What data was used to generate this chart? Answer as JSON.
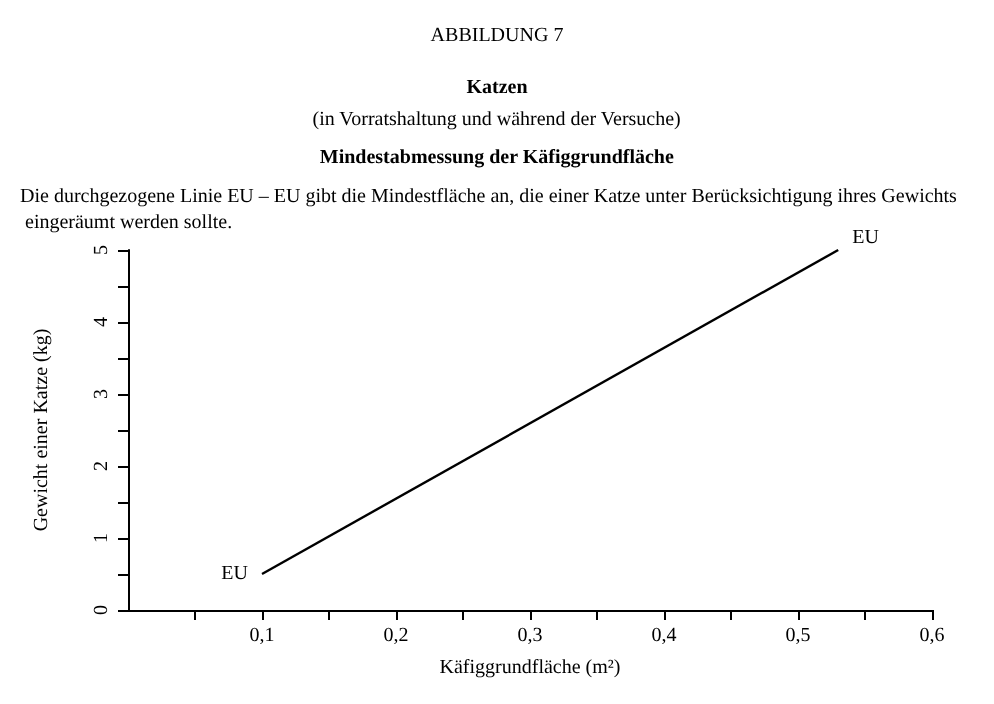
{
  "chart_data": {
    "type": "line",
    "title": "ABBILDUNG 7",
    "subtitle": "Katzen",
    "annotations": [
      "(in Vorratshaltung und während der Versuche)",
      "Mindestabmessung der Käfiggrundfläche",
      "Die durchgezogene Linie EU – EU gibt die Mindestfläche an, die einer Katze unter Berücksichtigung ihres Gewichts eingeräumt werden sollte.",
      {
        "text": "EU",
        "x": 0.1,
        "y": 0.5
      },
      {
        "text": "EU",
        "x": 0.53,
        "y": 5
      }
    ],
    "xlabel": "Käfiggrundfläche (m²)",
    "ylabel": "Gewicht einer Katze (kg)",
    "series": [
      {
        "color": "#000000",
        "x": [
          0.1,
          0.53
        ],
        "values": [
          0.5,
          5
        ]
      }
    ],
    "xlim": [
      0,
      0.6
    ],
    "xticks": [
      {
        "value": 0.05,
        "label": null
      },
      {
        "value": 0.1,
        "label": "0,1"
      },
      {
        "value": 0.15,
        "label": null
      },
      {
        "value": 0.2,
        "label": "0,2"
      },
      {
        "value": 0.25,
        "label": null
      },
      {
        "value": 0.3,
        "label": "0,3"
      },
      {
        "value": 0.35,
        "label": null
      },
      {
        "value": 0.4,
        "label": "0,4"
      },
      {
        "value": 0.45,
        "label": null
      },
      {
        "value": 0.5,
        "label": "0,5"
      },
      {
        "value": 0.55,
        "label": null
      },
      {
        "value": 0.6,
        "label": "0,6"
      }
    ],
    "ylim": [
      0,
      5
    ],
    "yticks": [
      0,
      {
        "value": 0.5,
        "label": null
      },
      1,
      {
        "value": 1.5,
        "label": null
      },
      2,
      {
        "value": 2.5,
        "label": null
      },
      3,
      {
        "value": 3.5,
        "label": null
      },
      4,
      {
        "value": 4.5,
        "label": null
      },
      5
    ],
    "grid": false,
    "marker": "none",
    "line_style": "solid"
  }
}
